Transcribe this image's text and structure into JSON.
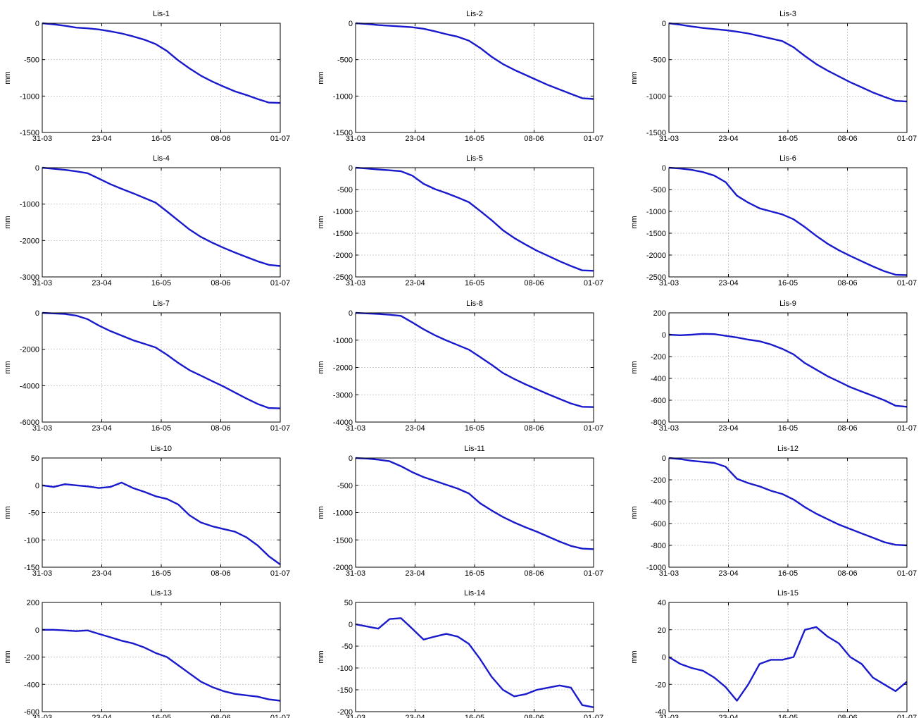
{
  "line_color": "#1a1acd",
  "chart_data": [
    {
      "type": "line",
      "title": "Lis-1",
      "ylabel": "mm",
      "xticks": [
        "31-03",
        "23-04",
        "16-05",
        "08-06",
        "01-07"
      ],
      "yticks": [
        0,
        -500,
        -1000,
        -1500
      ],
      "ylim": [
        -1500,
        0
      ],
      "grid": true,
      "series": [
        {
          "values": [
            0,
            -15,
            -35,
            -60,
            -70,
            -85,
            -110,
            -140,
            -180,
            -225,
            -285,
            -380,
            -510,
            -620,
            -720,
            -800,
            -870,
            -935,
            -985,
            -1040,
            -1090,
            -1095
          ]
        }
      ]
    },
    {
      "type": "line",
      "title": "Lis-2",
      "ylabel": "mm",
      "xticks": [
        "31-03",
        "23-04",
        "16-05",
        "08-06",
        "01-07"
      ],
      "yticks": [
        0,
        -500,
        -1000,
        -1500
      ],
      "ylim": [
        -1500,
        0
      ],
      "grid": true,
      "series": [
        {
          "values": [
            0,
            -10,
            -25,
            -35,
            -45,
            -55,
            -75,
            -110,
            -150,
            -185,
            -240,
            -340,
            -460,
            -560,
            -640,
            -710,
            -780,
            -850,
            -910,
            -970,
            -1030,
            -1040
          ]
        }
      ]
    },
    {
      "type": "line",
      "title": "Lis-3",
      "ylabel": "mm",
      "xticks": [
        "31-03",
        "23-04",
        "16-05",
        "08-06",
        "01-07"
      ],
      "yticks": [
        0,
        -500,
        -1000,
        -1500
      ],
      "ylim": [
        -1500,
        0
      ],
      "grid": true,
      "series": [
        {
          "values": [
            0,
            -20,
            -45,
            -65,
            -80,
            -95,
            -115,
            -140,
            -175,
            -210,
            -245,
            -330,
            -450,
            -560,
            -650,
            -730,
            -810,
            -880,
            -950,
            -1010,
            -1065,
            -1075
          ]
        }
      ]
    },
    {
      "type": "line",
      "title": "Lis-4",
      "ylabel": "mm",
      "xticks": [
        "31-03",
        "23-04",
        "16-05",
        "08-06",
        "01-07"
      ],
      "yticks": [
        0,
        -1000,
        -2000,
        -3000
      ],
      "ylim": [
        -3000,
        0
      ],
      "grid": true,
      "series": [
        {
          "values": [
            0,
            -30,
            -60,
            -100,
            -150,
            -300,
            -450,
            -580,
            -700,
            -830,
            -960,
            -1200,
            -1450,
            -1700,
            -1900,
            -2060,
            -2200,
            -2330,
            -2450,
            -2570,
            -2670,
            -2700
          ]
        }
      ]
    },
    {
      "type": "line",
      "title": "Lis-5",
      "ylabel": "mm",
      "xticks": [
        "31-03",
        "23-04",
        "16-05",
        "08-06",
        "01-07"
      ],
      "yticks": [
        0,
        -500,
        -1000,
        -1500,
        -2000,
        -2500
      ],
      "ylim": [
        -2500,
        0
      ],
      "grid": true,
      "series": [
        {
          "values": [
            0,
            -20,
            -40,
            -60,
            -80,
            -180,
            -370,
            -490,
            -580,
            -680,
            -790,
            -990,
            -1200,
            -1430,
            -1610,
            -1760,
            -1900,
            -2020,
            -2140,
            -2250,
            -2350,
            -2360
          ]
        }
      ]
    },
    {
      "type": "line",
      "title": "Lis-6",
      "ylabel": "mm",
      "xticks": [
        "31-03",
        "23-04",
        "16-05",
        "08-06",
        "01-07"
      ],
      "yticks": [
        0,
        -500,
        -1000,
        -1500,
        -2000,
        -2500
      ],
      "ylim": [
        -2500,
        0
      ],
      "grid": true,
      "series": [
        {
          "values": [
            0,
            -20,
            -50,
            -100,
            -180,
            -330,
            -640,
            -800,
            -930,
            -1000,
            -1070,
            -1180,
            -1360,
            -1560,
            -1740,
            -1890,
            -2020,
            -2140,
            -2260,
            -2370,
            -2450,
            -2460
          ]
        }
      ]
    },
    {
      "type": "line",
      "title": "Lis-7",
      "ylabel": "mm",
      "xticks": [
        "31-03",
        "23-04",
        "16-05",
        "08-06",
        "01-07"
      ],
      "yticks": [
        0,
        -2000,
        -4000,
        -6000
      ],
      "ylim": [
        -6000,
        0
      ],
      "grid": true,
      "series": [
        {
          "values": [
            0,
            -30,
            -60,
            -150,
            -350,
            -700,
            -1000,
            -1250,
            -1500,
            -1700,
            -1900,
            -2300,
            -2750,
            -3150,
            -3450,
            -3750,
            -4050,
            -4380,
            -4700,
            -5000,
            -5230,
            -5250
          ]
        }
      ]
    },
    {
      "type": "line",
      "title": "Lis-8",
      "ylabel": "mm",
      "xticks": [
        "31-03",
        "23-04",
        "16-05",
        "08-06",
        "01-07"
      ],
      "yticks": [
        0,
        -1000,
        -2000,
        -3000,
        -4000
      ],
      "ylim": [
        -4000,
        0
      ],
      "grid": true,
      "series": [
        {
          "values": [
            0,
            -20,
            -40,
            -70,
            -110,
            -350,
            -600,
            -820,
            -1010,
            -1180,
            -1350,
            -1620,
            -1900,
            -2200,
            -2420,
            -2620,
            -2800,
            -2980,
            -3150,
            -3320,
            -3440,
            -3450
          ]
        }
      ]
    },
    {
      "type": "line",
      "title": "Lis-9",
      "ylabel": "mm",
      "xticks": [
        "31-03",
        "23-04",
        "16-05",
        "08-06",
        "01-07"
      ],
      "yticks": [
        200,
        0,
        -200,
        -400,
        -600,
        -800
      ],
      "ylim": [
        -800,
        200
      ],
      "grid": true,
      "series": [
        {
          "values": [
            0,
            -5,
            0,
            8,
            5,
            -10,
            -25,
            -45,
            -60,
            -90,
            -130,
            -180,
            -260,
            -320,
            -380,
            -430,
            -480,
            -520,
            -560,
            -600,
            -650,
            -660
          ]
        }
      ]
    },
    {
      "type": "line",
      "title": "Lis-10",
      "ylabel": "mm",
      "xticks": [
        "31-03",
        "23-04",
        "16-05",
        "08-06",
        "01-07"
      ],
      "yticks": [
        50,
        0,
        -50,
        -100,
        -150
      ],
      "ylim": [
        -150,
        50
      ],
      "grid": true,
      "series": [
        {
          "values": [
            0,
            -3,
            2,
            0,
            -2,
            -5,
            -3,
            5,
            -5,
            -12,
            -20,
            -25,
            -35,
            -55,
            -68,
            -75,
            -80,
            -85,
            -95,
            -110,
            -130,
            -145
          ]
        }
      ]
    },
    {
      "type": "line",
      "title": "Lis-11",
      "ylabel": "mm",
      "xticks": [
        "31-03",
        "23-04",
        "16-05",
        "08-06",
        "01-07"
      ],
      "yticks": [
        0,
        -500,
        -1000,
        -1500,
        -2000
      ],
      "ylim": [
        -2000,
        0
      ],
      "grid": true,
      "series": [
        {
          "values": [
            0,
            -10,
            -30,
            -60,
            -150,
            -260,
            -350,
            -420,
            -490,
            -560,
            -650,
            -830,
            -960,
            -1080,
            -1180,
            -1270,
            -1350,
            -1440,
            -1530,
            -1610,
            -1660,
            -1670
          ]
        }
      ]
    },
    {
      "type": "line",
      "title": "Lis-12",
      "ylabel": "mm",
      "xticks": [
        "31-03",
        "23-04",
        "16-05",
        "08-06",
        "01-07"
      ],
      "yticks": [
        0,
        -200,
        -400,
        -600,
        -800,
        -1000
      ],
      "ylim": [
        -1000,
        0
      ],
      "grid": true,
      "series": [
        {
          "values": [
            0,
            -10,
            -25,
            -35,
            -45,
            -80,
            -190,
            -230,
            -260,
            -300,
            -330,
            -380,
            -450,
            -510,
            -560,
            -610,
            -650,
            -690,
            -730,
            -770,
            -795,
            -800
          ]
        }
      ]
    },
    {
      "type": "line",
      "title": "Lis-13",
      "ylabel": "mm",
      "xticks": [
        "31-03",
        "23-04",
        "16-05",
        "08-06",
        "01-07"
      ],
      "yticks": [
        200,
        0,
        -200,
        -400,
        -600
      ],
      "ylim": [
        -600,
        200
      ],
      "grid": true,
      "series": [
        {
          "values": [
            0,
            0,
            -5,
            -10,
            -5,
            -30,
            -55,
            -80,
            -100,
            -130,
            -170,
            -200,
            -260,
            -320,
            -380,
            -420,
            -450,
            -470,
            -480,
            -490,
            -510,
            -520
          ]
        }
      ]
    },
    {
      "type": "line",
      "title": "Lis-14",
      "ylabel": "mm",
      "xticks": [
        "31-03",
        "23-04",
        "16-05",
        "08-06",
        "01-07"
      ],
      "yticks": [
        50,
        0,
        -50,
        -100,
        -150,
        -200
      ],
      "ylim": [
        -200,
        50
      ],
      "grid": true,
      "series": [
        {
          "values": [
            0,
            -5,
            -10,
            12,
            14,
            -10,
            -35,
            -28,
            -22,
            -28,
            -45,
            -80,
            -120,
            -150,
            -165,
            -160,
            -150,
            -145,
            -140,
            -145,
            -185,
            -190
          ]
        }
      ]
    },
    {
      "type": "line",
      "title": "Lis-15",
      "ylabel": "mm",
      "xticks": [
        "31-03",
        "23-04",
        "16-05",
        "08-06",
        "01-07"
      ],
      "yticks": [
        40,
        20,
        0,
        -20,
        -40
      ],
      "ylim": [
        -40,
        40
      ],
      "grid": true,
      "series": [
        {
          "values": [
            0,
            -5,
            -8,
            -10,
            -15,
            -22,
            -32,
            -20,
            -5,
            -2,
            -2,
            0,
            20,
            22,
            15,
            10,
            0,
            -5,
            -15,
            -20,
            -25,
            -18
          ]
        }
      ]
    }
  ]
}
